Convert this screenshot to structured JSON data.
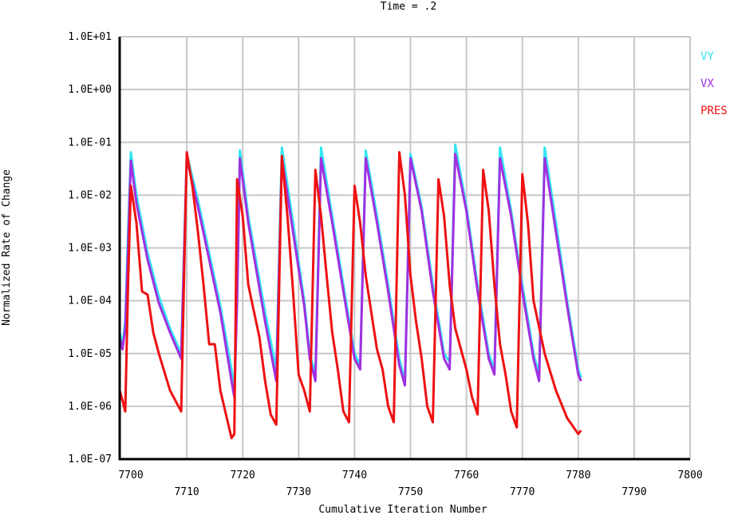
{
  "chart_data": {
    "type": "line",
    "title": "Time = .2",
    "xlabel": "Cumulative Iteration Number",
    "ylabel": "Normalized Rate of Change",
    "xlim": [
      7698,
      7800
    ],
    "ylim": [
      1e-07,
      10
    ],
    "yscale": "log",
    "grid": true,
    "legend_position": "top-right",
    "x_ticks": [
      {
        "value": 7700,
        "label": "7700"
      },
      {
        "value": 7710,
        "label": "7710"
      },
      {
        "value": 7720,
        "label": "7720"
      },
      {
        "value": 7730,
        "label": "7730"
      },
      {
        "value": 7740,
        "label": "7740"
      },
      {
        "value": 7750,
        "label": "7750"
      },
      {
        "value": 7760,
        "label": "7760"
      },
      {
        "value": 7770,
        "label": "7770"
      },
      {
        "value": 7780,
        "label": "7780"
      },
      {
        "value": 7790,
        "label": "7790"
      },
      {
        "value": 7800,
        "label": "7800"
      }
    ],
    "y_ticks": [
      {
        "value": 10,
        "label": "1.0E+01"
      },
      {
        "value": 1,
        "label": "1.0E+00"
      },
      {
        "value": 0.1,
        "label": "1.0E-01"
      },
      {
        "value": 0.01,
        "label": "1.0E-02"
      },
      {
        "value": 0.001,
        "label": "1.0E-03"
      },
      {
        "value": 0.0001,
        "label": "1.0E-04"
      },
      {
        "value": 1e-05,
        "label": "1.0E-05"
      },
      {
        "value": 1e-06,
        "label": "1.0E-06"
      },
      {
        "value": 1e-07,
        "label": "1.0E-07"
      }
    ],
    "series": [
      {
        "name": "VY",
        "color": "#33e6f0",
        "points": [
          [
            7698,
            2.5e-05
          ],
          [
            7698.5,
            1.5e-05
          ],
          [
            7699,
            4e-05
          ],
          [
            7699.5,
            0.002
          ],
          [
            7700,
            0.065
          ],
          [
            7701,
            0.01
          ],
          [
            7703,
            0.0008
          ],
          [
            7705,
            0.00012
          ],
          [
            7707,
            3e-05
          ],
          [
            7709,
            1e-05
          ],
          [
            7710,
            0.06
          ],
          [
            7712,
            0.008
          ],
          [
            7714,
            0.0008
          ],
          [
            7716,
            8e-05
          ],
          [
            7718,
            5e-06
          ],
          [
            7718.5,
            2e-06
          ],
          [
            7719,
            0.0002
          ],
          [
            7719.5,
            0.07
          ],
          [
            7721,
            0.004
          ],
          [
            7724,
            6e-05
          ],
          [
            7726,
            5e-06
          ],
          [
            7727,
            0.08
          ],
          [
            7729,
            0.003
          ],
          [
            7731,
            0.0001
          ],
          [
            7732,
            1e-05
          ],
          [
            7733,
            4e-06
          ],
          [
            7734,
            0.08
          ],
          [
            7736,
            0.004
          ],
          [
            7738,
            0.0002
          ],
          [
            7740,
            1e-05
          ],
          [
            7741,
            6e-06
          ],
          [
            7742,
            0.07
          ],
          [
            7744,
            0.004
          ],
          [
            7746,
            0.0002
          ],
          [
            7748,
            8e-06
          ],
          [
            7749,
            3e-06
          ],
          [
            7750,
            0.06
          ],
          [
            7752,
            0.006
          ],
          [
            7754,
            0.0002
          ],
          [
            7756,
            1e-05
          ],
          [
            7757,
            7e-06
          ],
          [
            7758,
            0.09
          ],
          [
            7760,
            0.006
          ],
          [
            7762,
            0.0002
          ],
          [
            7764,
            1e-05
          ],
          [
            7765,
            5e-06
          ],
          [
            7766,
            0.08
          ],
          [
            7768,
            0.005
          ],
          [
            7770,
            0.0002
          ],
          [
            7772,
            1e-05
          ],
          [
            7773,
            4e-06
          ],
          [
            7774,
            0.08
          ],
          [
            7776,
            0.003
          ],
          [
            7778,
            0.0001
          ],
          [
            7780,
            5e-06
          ],
          [
            7780.5,
            3.5e-06
          ]
        ]
      },
      {
        "name": "VX",
        "color": "#a030e0",
        "points": [
          [
            7698,
            2e-05
          ],
          [
            7698.5,
            1.2e-05
          ],
          [
            7699,
            3e-05
          ],
          [
            7699.5,
            0.001
          ],
          [
            7700,
            0.045
          ],
          [
            7701,
            0.007
          ],
          [
            7703,
            0.0006
          ],
          [
            7705,
            9e-05
          ],
          [
            7707,
            2.5e-05
          ],
          [
            7709,
            8e-06
          ],
          [
            7710,
            0.05
          ],
          [
            7712,
            0.006
          ],
          [
            7714,
            0.0006
          ],
          [
            7716,
            6e-05
          ],
          [
            7718,
            3e-06
          ],
          [
            7718.5,
            1.5e-06
          ],
          [
            7719,
            0.0001
          ],
          [
            7719.5,
            0.05
          ],
          [
            7721,
            0.003
          ],
          [
            7724,
            4e-05
          ],
          [
            7726,
            3e-06
          ],
          [
            7727,
            0.05
          ],
          [
            7729,
            0.002
          ],
          [
            7731,
            8e-05
          ],
          [
            7732,
            8e-06
          ],
          [
            7733,
            3e-06
          ],
          [
            7734,
            0.05
          ],
          [
            7736,
            0.003
          ],
          [
            7738,
            0.00015
          ],
          [
            7740,
            8e-06
          ],
          [
            7741,
            5e-06
          ],
          [
            7742,
            0.05
          ],
          [
            7744,
            0.003
          ],
          [
            7746,
            0.00015
          ],
          [
            7748,
            6e-06
          ],
          [
            7749,
            2.5e-06
          ],
          [
            7750,
            0.05
          ],
          [
            7752,
            0.005
          ],
          [
            7754,
            0.00015
          ],
          [
            7756,
            8e-06
          ],
          [
            7757,
            5e-06
          ],
          [
            7758,
            0.06
          ],
          [
            7760,
            0.005
          ],
          [
            7762,
            0.00015
          ],
          [
            7764,
            8e-06
          ],
          [
            7765,
            4e-06
          ],
          [
            7766,
            0.05
          ],
          [
            7768,
            0.004
          ],
          [
            7770,
            0.00015
          ],
          [
            7772,
            8e-06
          ],
          [
            7773,
            3e-06
          ],
          [
            7774,
            0.05
          ],
          [
            7776,
            0.002
          ],
          [
            7778,
            8e-05
          ],
          [
            7780,
            4e-06
          ],
          [
            7780.5,
            3e-06
          ]
        ]
      },
      {
        "name": "PRES",
        "color": "#ee1111",
        "points": [
          [
            7698,
            2e-06
          ],
          [
            7698.5,
            1.3e-06
          ],
          [
            7699,
            8e-07
          ],
          [
            7699.5,
            0.0002
          ],
          [
            7700,
            0.015
          ],
          [
            7701,
            0.003
          ],
          [
            7702,
            0.00015
          ],
          [
            7703,
            0.00013
          ],
          [
            7704,
            2.5e-05
          ],
          [
            7705,
            1e-05
          ],
          [
            7707,
            2e-06
          ],
          [
            7709,
            8e-07
          ],
          [
            7710,
            0.065
          ],
          [
            7711,
            0.015
          ],
          [
            7712,
            0.002
          ],
          [
            7713,
            0.0002
          ],
          [
            7714,
            1.5e-05
          ],
          [
            7715,
            1.5e-05
          ],
          [
            7716,
            2e-06
          ],
          [
            7718,
            2.5e-07
          ],
          [
            7718.5,
            3e-07
          ],
          [
            7719,
            0.02
          ],
          [
            7720,
            0.004
          ],
          [
            7721,
            0.0002
          ],
          [
            7723,
            2e-05
          ],
          [
            7724,
            3e-06
          ],
          [
            7725,
            7e-07
          ],
          [
            7726,
            4.5e-07
          ],
          [
            7726.5,
            0.00015
          ],
          [
            7727,
            0.055
          ],
          [
            7728,
            0.004
          ],
          [
            7729,
            0.00015
          ],
          [
            7730,
            4e-06
          ],
          [
            7731,
            2e-06
          ],
          [
            7732,
            8e-07
          ],
          [
            7733,
            0.03
          ],
          [
            7734,
            0.004
          ],
          [
            7735,
            0.0003
          ],
          [
            7736,
            2.5e-05
          ],
          [
            7737,
            5e-06
          ],
          [
            7738,
            8e-07
          ],
          [
            7739,
            5e-07
          ],
          [
            7740,
            0.015
          ],
          [
            7741,
            0.003
          ],
          [
            7742,
            0.0003
          ],
          [
            7743,
            6e-05
          ],
          [
            7744,
            1.2e-05
          ],
          [
            7745,
            5e-06
          ],
          [
            7746,
            1e-06
          ],
          [
            7747,
            5e-07
          ],
          [
            7748,
            0.065
          ],
          [
            7749,
            0.01
          ],
          [
            7750,
            0.0003
          ],
          [
            7751,
            4e-05
          ],
          [
            7752,
            8e-06
          ],
          [
            7753,
            1e-06
          ],
          [
            7754,
            5e-07
          ],
          [
            7755,
            0.02
          ],
          [
            7756,
            0.004
          ],
          [
            7757,
            0.0002
          ],
          [
            7758,
            3e-05
          ],
          [
            7760,
            5e-06
          ],
          [
            7761,
            1.5e-06
          ],
          [
            7762,
            7e-07
          ],
          [
            7763,
            0.03
          ],
          [
            7764,
            0.005
          ],
          [
            7765,
            0.0002
          ],
          [
            7766,
            1.5e-05
          ],
          [
            7767,
            4e-06
          ],
          [
            7768,
            8e-07
          ],
          [
            7769,
            4e-07
          ],
          [
            7770,
            0.025
          ],
          [
            7771,
            0.003
          ],
          [
            7772,
            0.0001
          ],
          [
            7774,
            1e-05
          ],
          [
            7776,
            2e-06
          ],
          [
            7778,
            6e-07
          ],
          [
            7780,
            3e-07
          ],
          [
            7780.5,
            3.5e-07
          ]
        ]
      }
    ]
  }
}
